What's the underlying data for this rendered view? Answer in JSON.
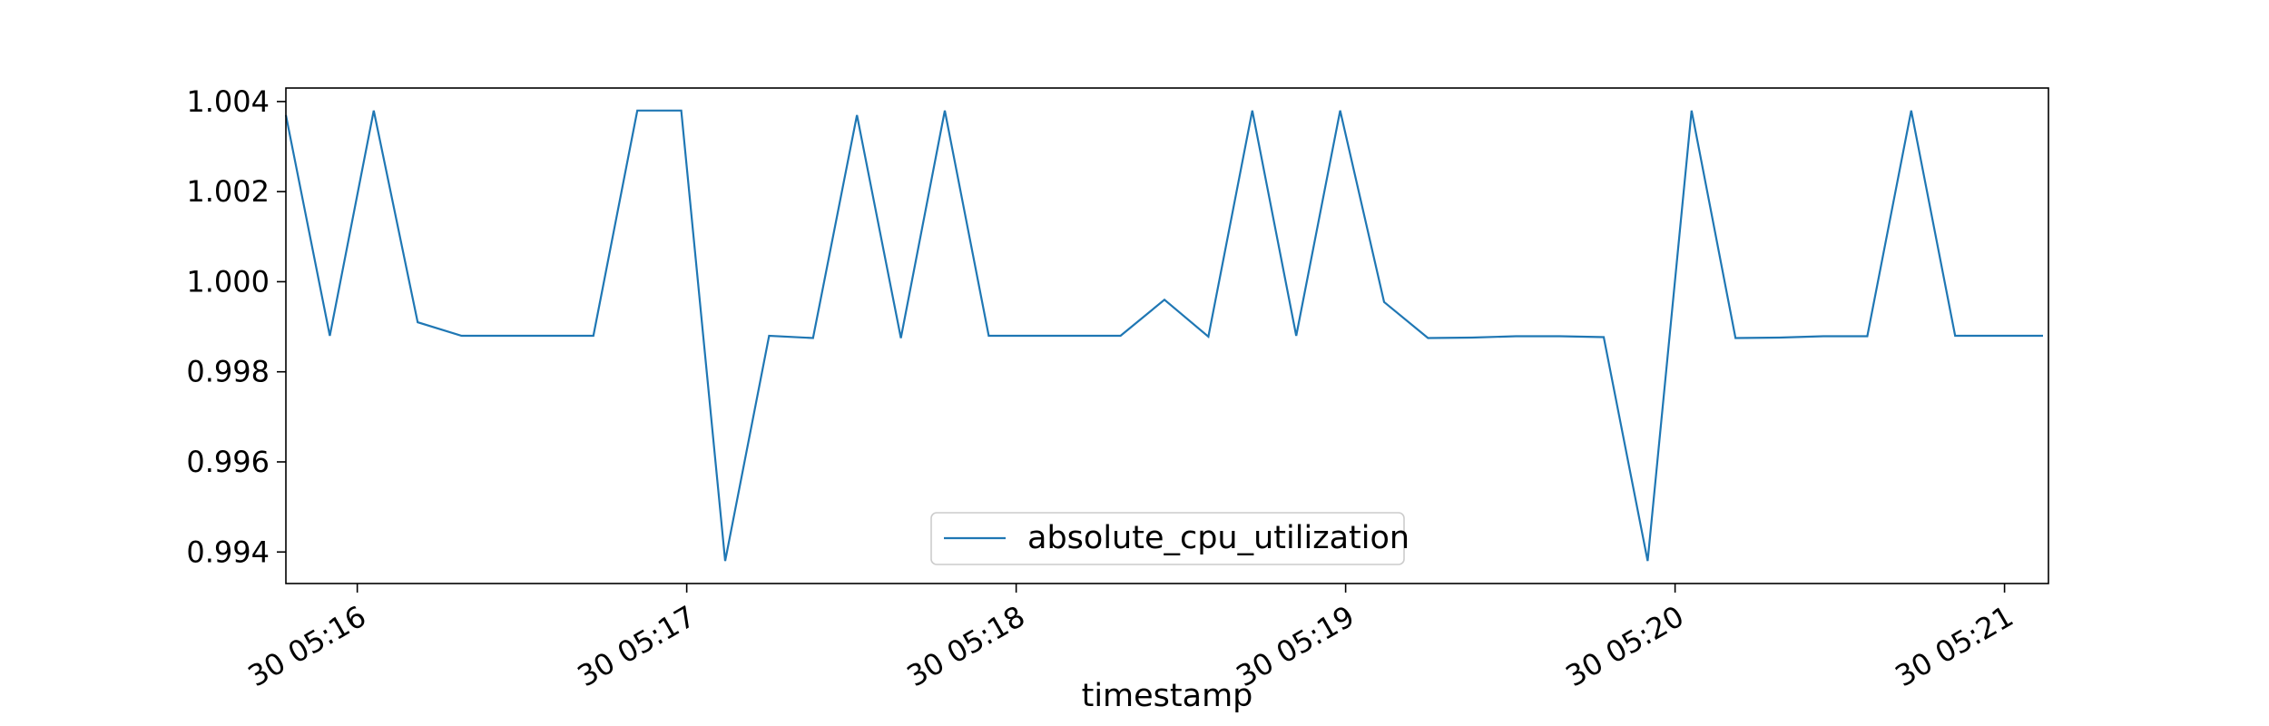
{
  "chart_data": {
    "type": "line",
    "title": "",
    "xlabel": "timestamp",
    "ylabel": "",
    "xlim": [
      "2000-01-30 05:15:47",
      "2000-01-30 05:21:08"
    ],
    "ylim": [
      0.9933,
      1.0043
    ],
    "x_ticks": [
      "2000-01-30 05:16:00",
      "2000-01-30 05:17:00",
      "2000-01-30 05:18:00",
      "2000-01-30 05:19:00",
      "2000-01-30 05:20:00",
      "2000-01-30 05:21:00"
    ],
    "x_tick_labels": [
      "30 05:16",
      "30 05:17",
      "30 05:18",
      "30 05:19",
      "30 05:20",
      "30 05:21"
    ],
    "y_ticks": [
      0.994,
      0.996,
      0.998,
      1.0,
      1.002,
      1.004
    ],
    "y_tick_labels": [
      "0.994",
      "0.996",
      "0.998",
      "1.000",
      "1.002",
      "1.004"
    ],
    "grid": false,
    "legend": {
      "position": "bottom-center",
      "entries": [
        "absolute_cpu_utilization"
      ]
    },
    "series": [
      {
        "name": "absolute_cpu_utilization",
        "color": "#1f77b4",
        "x": [
          "2000-01-30 05:15:47",
          "2000-01-30 05:15:55",
          "2000-01-30 05:16:03",
          "2000-01-30 05:16:11",
          "2000-01-30 05:16:19",
          "2000-01-30 05:16:27",
          "2000-01-30 05:16:35",
          "2000-01-30 05:16:43",
          "2000-01-30 05:16:51",
          "2000-01-30 05:16:59",
          "2000-01-30 05:17:07",
          "2000-01-30 05:17:15",
          "2000-01-30 05:17:23",
          "2000-01-30 05:17:31",
          "2000-01-30 05:17:39",
          "2000-01-30 05:17:47",
          "2000-01-30 05:17:55",
          "2000-01-30 05:18:03",
          "2000-01-30 05:18:11",
          "2000-01-30 05:18:19",
          "2000-01-30 05:18:27",
          "2000-01-30 05:18:35",
          "2000-01-30 05:18:43",
          "2000-01-30 05:18:51",
          "2000-01-30 05:18:59",
          "2000-01-30 05:19:07",
          "2000-01-30 05:19:15",
          "2000-01-30 05:19:23",
          "2000-01-30 05:19:31",
          "2000-01-30 05:19:39",
          "2000-01-30 05:19:47",
          "2000-01-30 05:19:55",
          "2000-01-30 05:20:03",
          "2000-01-30 05:20:11",
          "2000-01-30 05:20:19",
          "2000-01-30 05:20:27",
          "2000-01-30 05:20:35",
          "2000-01-30 05:20:43",
          "2000-01-30 05:20:51",
          "2000-01-30 05:20:59",
          "2000-01-30 05:21:07"
        ],
        "y": [
          1.0037,
          0.9988,
          1.0038,
          0.9991,
          0.9988,
          0.9988,
          0.9988,
          0.9988,
          1.0038,
          1.0038,
          0.9938,
          0.9988,
          0.99875,
          1.0037,
          0.99875,
          1.0038,
          0.9988,
          0.9988,
          0.9988,
          0.9988,
          0.9996,
          0.99878,
          1.0038,
          0.9988,
          1.0038,
          0.99955,
          0.99875,
          0.99876,
          0.99879,
          0.99879,
          0.99877,
          0.9938,
          1.0038,
          0.99875,
          0.99876,
          0.99879,
          0.99879,
          1.0038,
          0.9988,
          0.9988,
          0.9988
        ]
      }
    ]
  }
}
